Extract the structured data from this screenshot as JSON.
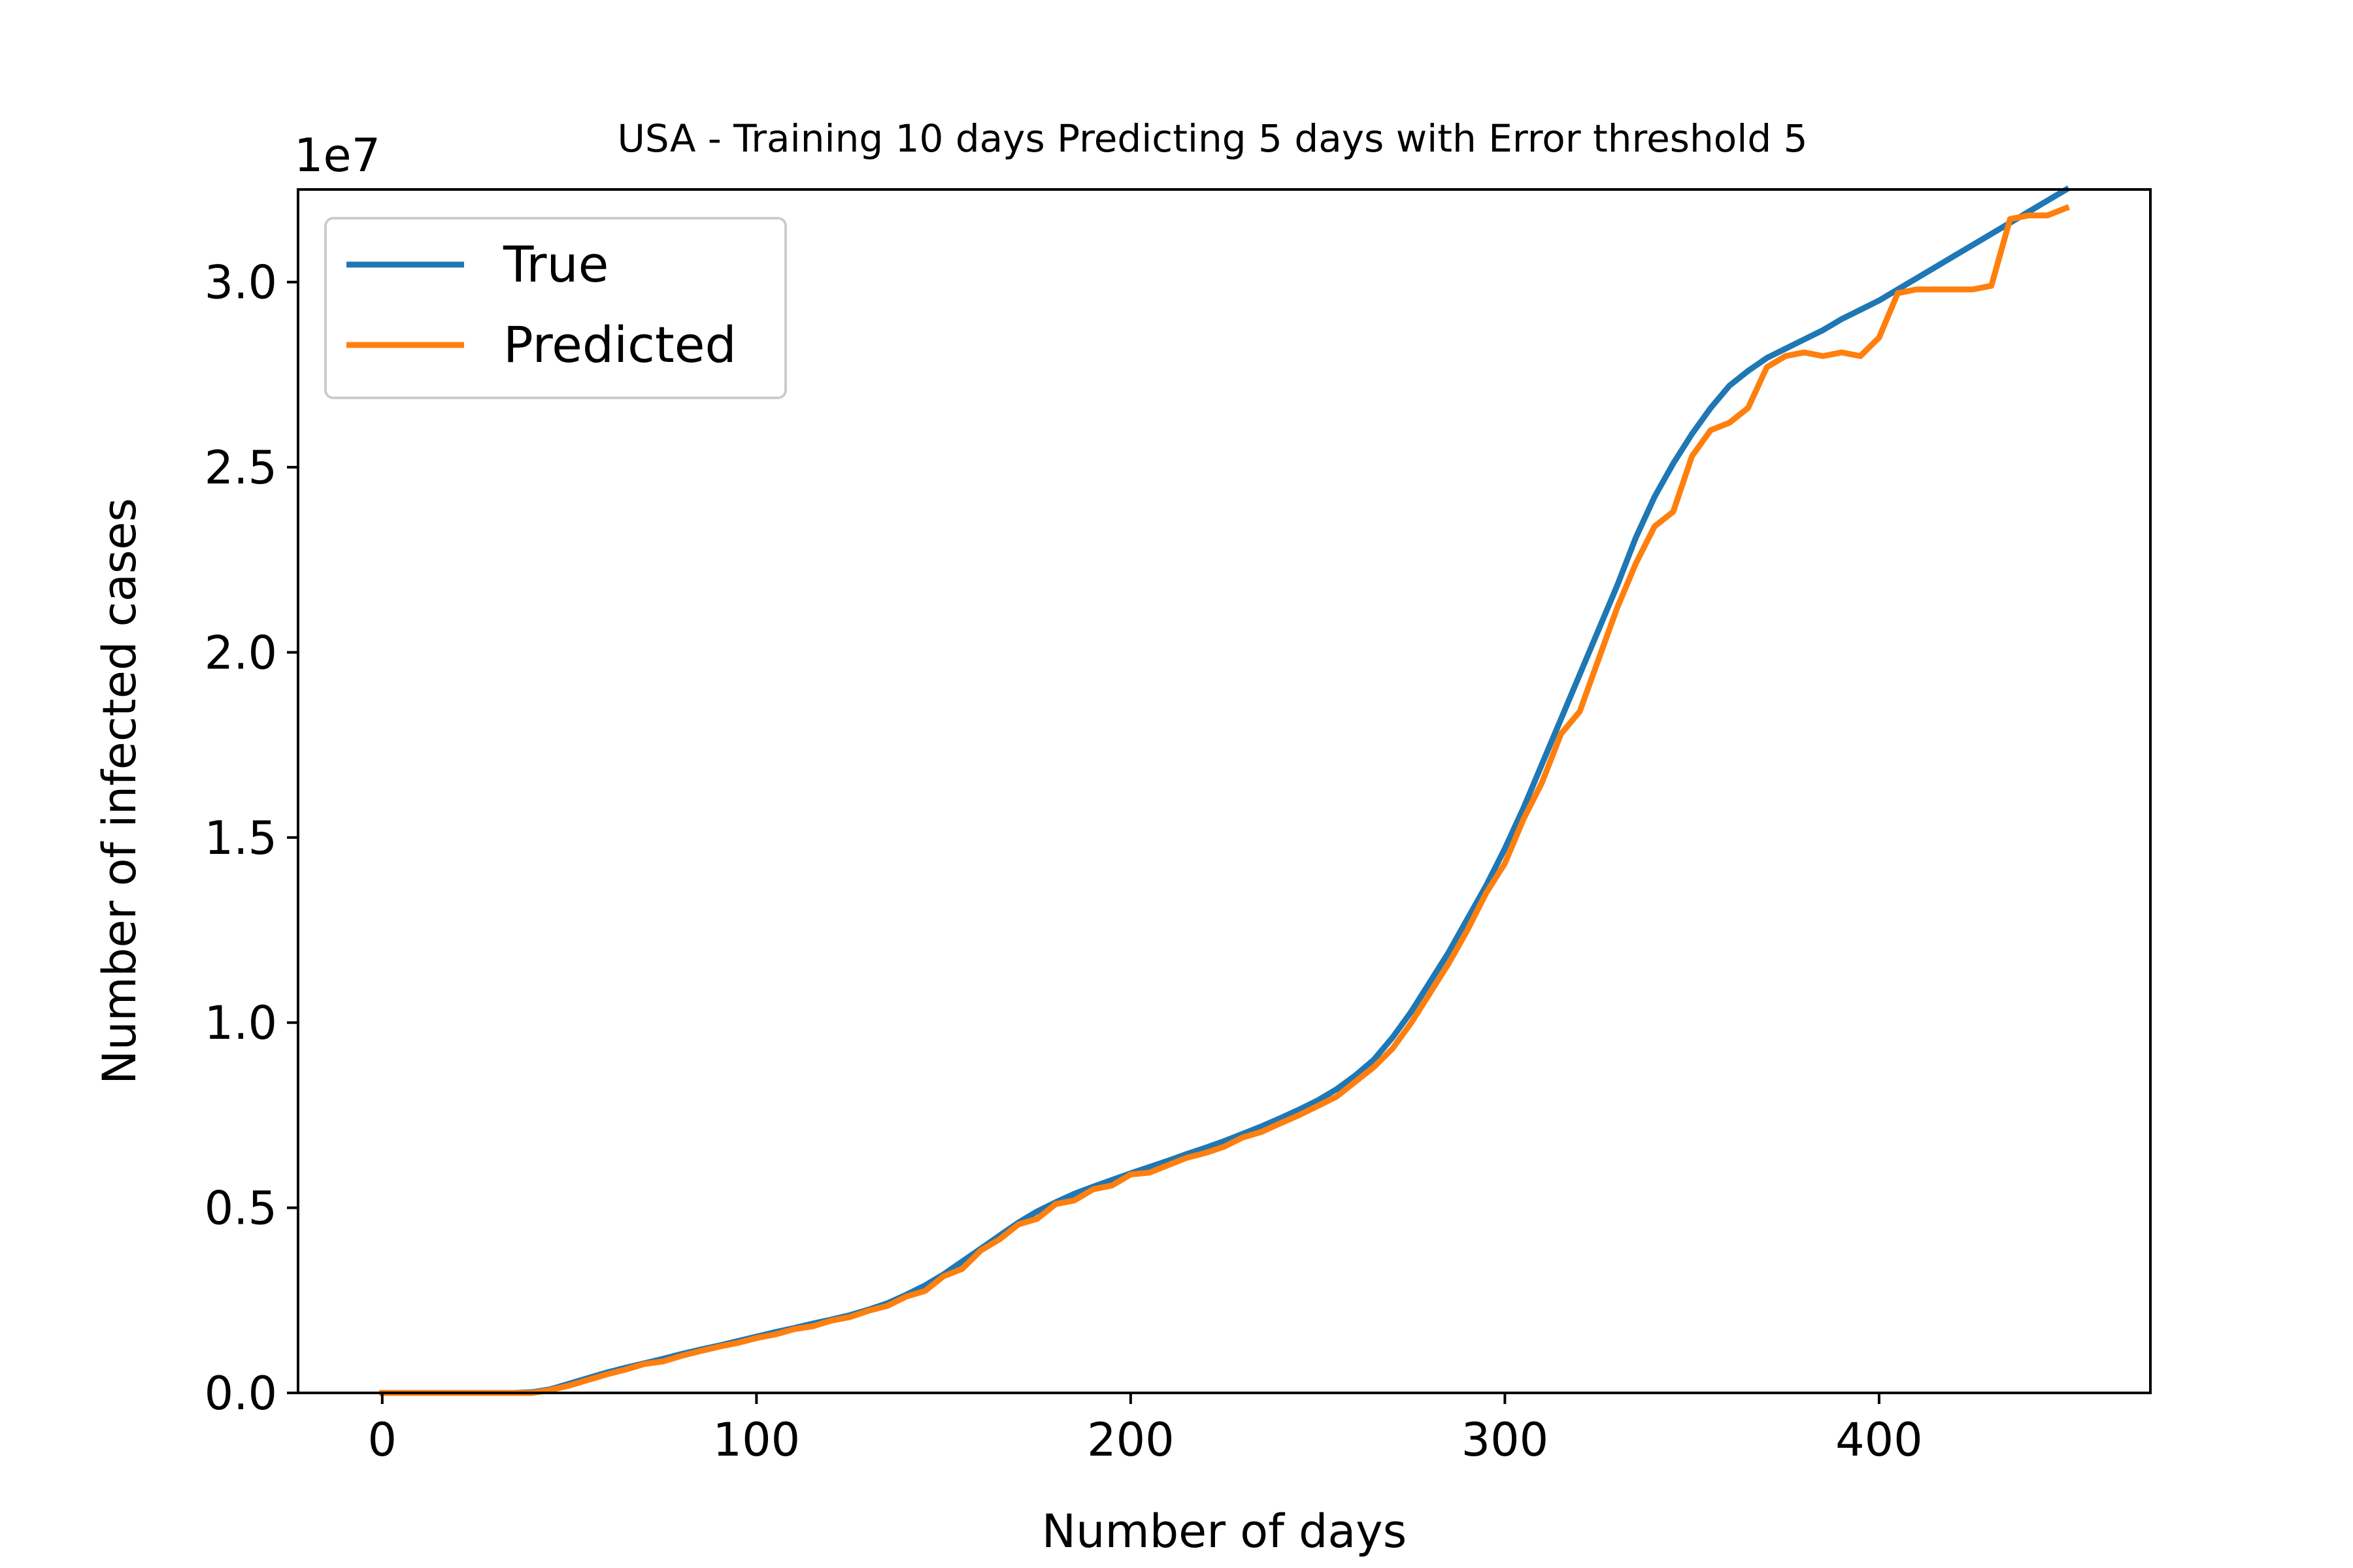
{
  "chart_data": {
    "type": "line",
    "title": "USA - Training 10 days Predicting 5 days with Error threshold 5",
    "xlabel": "Number of days",
    "ylabel": "Number of infected cases",
    "y_offset_label": "1e7",
    "y_scale": 10000000,
    "xlim": [
      -22.5,
      472.5
    ],
    "ylim": [
      0,
      3.25
    ],
    "xticks": [
      0,
      100,
      200,
      300,
      400
    ],
    "xtick_labels": [
      "0",
      "100",
      "200",
      "300",
      "400"
    ],
    "yticks": [
      0,
      0.5,
      1.0,
      1.5,
      2.0,
      2.5,
      3.0
    ],
    "ytick_labels": [
      "0.0",
      "0.5",
      "1.0",
      "1.5",
      "2.0",
      "2.5",
      "3.0"
    ],
    "grid": false,
    "legend_position": "upper left",
    "x": [
      0,
      5,
      10,
      15,
      20,
      25,
      30,
      35,
      40,
      45,
      50,
      55,
      60,
      65,
      70,
      75,
      80,
      85,
      90,
      95,
      100,
      105,
      110,
      115,
      120,
      125,
      130,
      135,
      140,
      145,
      150,
      155,
      160,
      165,
      170,
      175,
      180,
      185,
      190,
      195,
      200,
      205,
      210,
      215,
      220,
      225,
      230,
      235,
      240,
      245,
      250,
      255,
      260,
      265,
      270,
      275,
      280,
      285,
      290,
      295,
      300,
      305,
      310,
      315,
      320,
      325,
      330,
      335,
      340,
      345,
      350,
      355,
      360,
      365,
      370,
      375,
      380,
      385,
      390,
      395,
      400,
      405,
      410,
      415,
      420,
      425,
      430,
      435,
      440,
      445,
      450
    ],
    "series": [
      {
        "name": "True",
        "color": "#1f77b4",
        "values": [
          0,
          0,
          0,
          0,
          0,
          0,
          0,
          0,
          0.002,
          0.01,
          0.025,
          0.04,
          0.055,
          0.068,
          0.08,
          0.092,
          0.105,
          0.117,
          0.128,
          0.14,
          0.152,
          0.164,
          0.175,
          0.187,
          0.198,
          0.21,
          0.225,
          0.242,
          0.265,
          0.29,
          0.32,
          0.355,
          0.39,
          0.425,
          0.46,
          0.49,
          0.515,
          0.538,
          0.557,
          0.575,
          0.593,
          0.61,
          0.627,
          0.645,
          0.662,
          0.68,
          0.7,
          0.72,
          0.742,
          0.765,
          0.79,
          0.82,
          0.857,
          0.9,
          0.96,
          1.03,
          1.11,
          1.19,
          1.28,
          1.37,
          1.47,
          1.58,
          1.7,
          1.82,
          1.94,
          2.06,
          2.18,
          2.31,
          2.42,
          2.51,
          2.59,
          2.66,
          2.72,
          2.76,
          2.795,
          2.82,
          2.845,
          2.87,
          2.9,
          2.925,
          2.95,
          2.98,
          3.01,
          3.04,
          3.07,
          3.1,
          3.13,
          3.16,
          3.19,
          3.22,
          3.25
        ]
      },
      {
        "name": "Predicted",
        "color": "#ff7f0e",
        "values": [
          0,
          0,
          0,
          0,
          0,
          0,
          0,
          0,
          0,
          0.008,
          0.02,
          0.035,
          0.05,
          0.063,
          0.078,
          0.085,
          0.1,
          0.113,
          0.125,
          0.135,
          0.148,
          0.158,
          0.172,
          0.18,
          0.195,
          0.205,
          0.222,
          0.235,
          0.26,
          0.275,
          0.315,
          0.335,
          0.385,
          0.415,
          0.455,
          0.47,
          0.51,
          0.52,
          0.55,
          0.56,
          0.59,
          0.595,
          0.615,
          0.635,
          0.648,
          0.665,
          0.69,
          0.705,
          0.728,
          0.75,
          0.775,
          0.8,
          0.84,
          0.88,
          0.93,
          1.0,
          1.08,
          1.16,
          1.25,
          1.35,
          1.43,
          1.55,
          1.65,
          1.78,
          1.84,
          1.98,
          2.12,
          2.24,
          2.34,
          2.38,
          2.53,
          2.6,
          2.62,
          2.66,
          2.77,
          2.8,
          2.81,
          2.8,
          2.81,
          2.8,
          2.85,
          2.97,
          2.98,
          2.98,
          2.98,
          2.98,
          2.99,
          3.17,
          3.18,
          3.18,
          3.2
        ]
      }
    ]
  }
}
